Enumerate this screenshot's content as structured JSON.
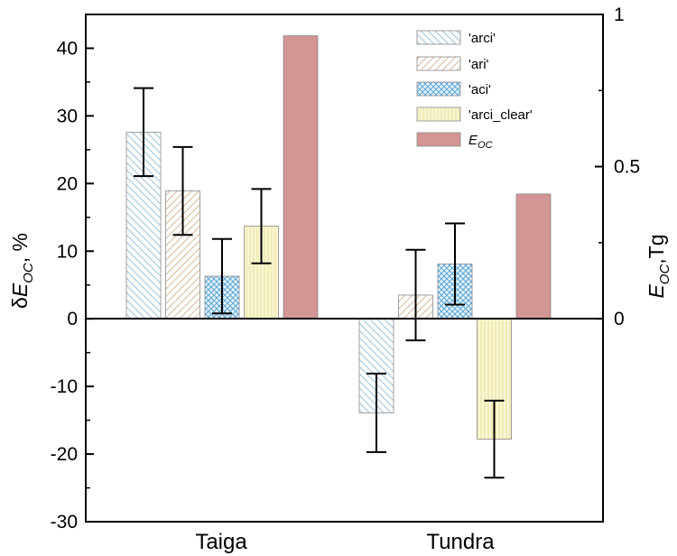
{
  "chart_data": {
    "type": "bar",
    "categories": [
      "Taiga",
      "Tundra"
    ],
    "series": [
      {
        "name": "'arci'",
        "axis": "left",
        "values": [
          27.6,
          -13.9
        ],
        "errors": [
          6.5,
          5.8
        ],
        "color": "#9ec3dd",
        "pattern": "diag-back"
      },
      {
        "name": "'ari'",
        "axis": "left",
        "values": [
          18.9,
          3.5
        ],
        "errors": [
          6.5,
          6.7
        ],
        "color": "#d9b99a",
        "pattern": "diag-fwd"
      },
      {
        "name": "'aci'",
        "axis": "left",
        "values": [
          6.3,
          8.1
        ],
        "errors": [
          5.5,
          6.0
        ],
        "color": "#5aa7d8",
        "pattern": "crosshatch"
      },
      {
        "name": "'arci_clear'",
        "axis": "left",
        "values": [
          13.7,
          -17.8
        ],
        "errors": [
          5.5,
          5.7
        ],
        "color": "#f2efb0",
        "pattern": "vertical"
      },
      {
        "name": "E_OC",
        "axis": "right",
        "values": [
          0.93,
          0.41
        ],
        "errors": [
          null,
          null
        ],
        "color": "#d49595",
        "pattern": "solid"
      }
    ],
    "left_axis": {
      "ylim": [
        -30,
        45
      ],
      "ticks": [
        "-30",
        "-20",
        "-10",
        "0",
        "10",
        "20",
        "30",
        "40"
      ],
      "tick_values": [
        -30,
        -20,
        -10,
        0,
        10,
        20,
        30,
        40
      ],
      "label_prefix": "δ",
      "label_main": "E",
      "label_sub": "OC",
      "label_suffix": ", %"
    },
    "right_axis": {
      "ylim": [
        -0.667,
        1.0
      ],
      "ticks": [
        "0",
        "0.5",
        "1"
      ],
      "tick_values": [
        0,
        0.5,
        1
      ],
      "label_main": "E",
      "label_sub": "OC",
      "label_suffix": ",Tg"
    },
    "legend": {
      "position": "top-right",
      "entries": [
        {
          "label": "'arci'"
        },
        {
          "label": "'ari'"
        },
        {
          "label": "'aci'"
        },
        {
          "label": "'arci_clear'"
        },
        {
          "label_main": "E",
          "label_sub": "OC"
        }
      ]
    },
    "grid": false
  },
  "colors": {
    "arci": "#9ec3dd",
    "ari": "#d9b99a",
    "aci": "#5aa7d8",
    "arci_clear": "#f2efb0",
    "eoc": "#d49595"
  }
}
